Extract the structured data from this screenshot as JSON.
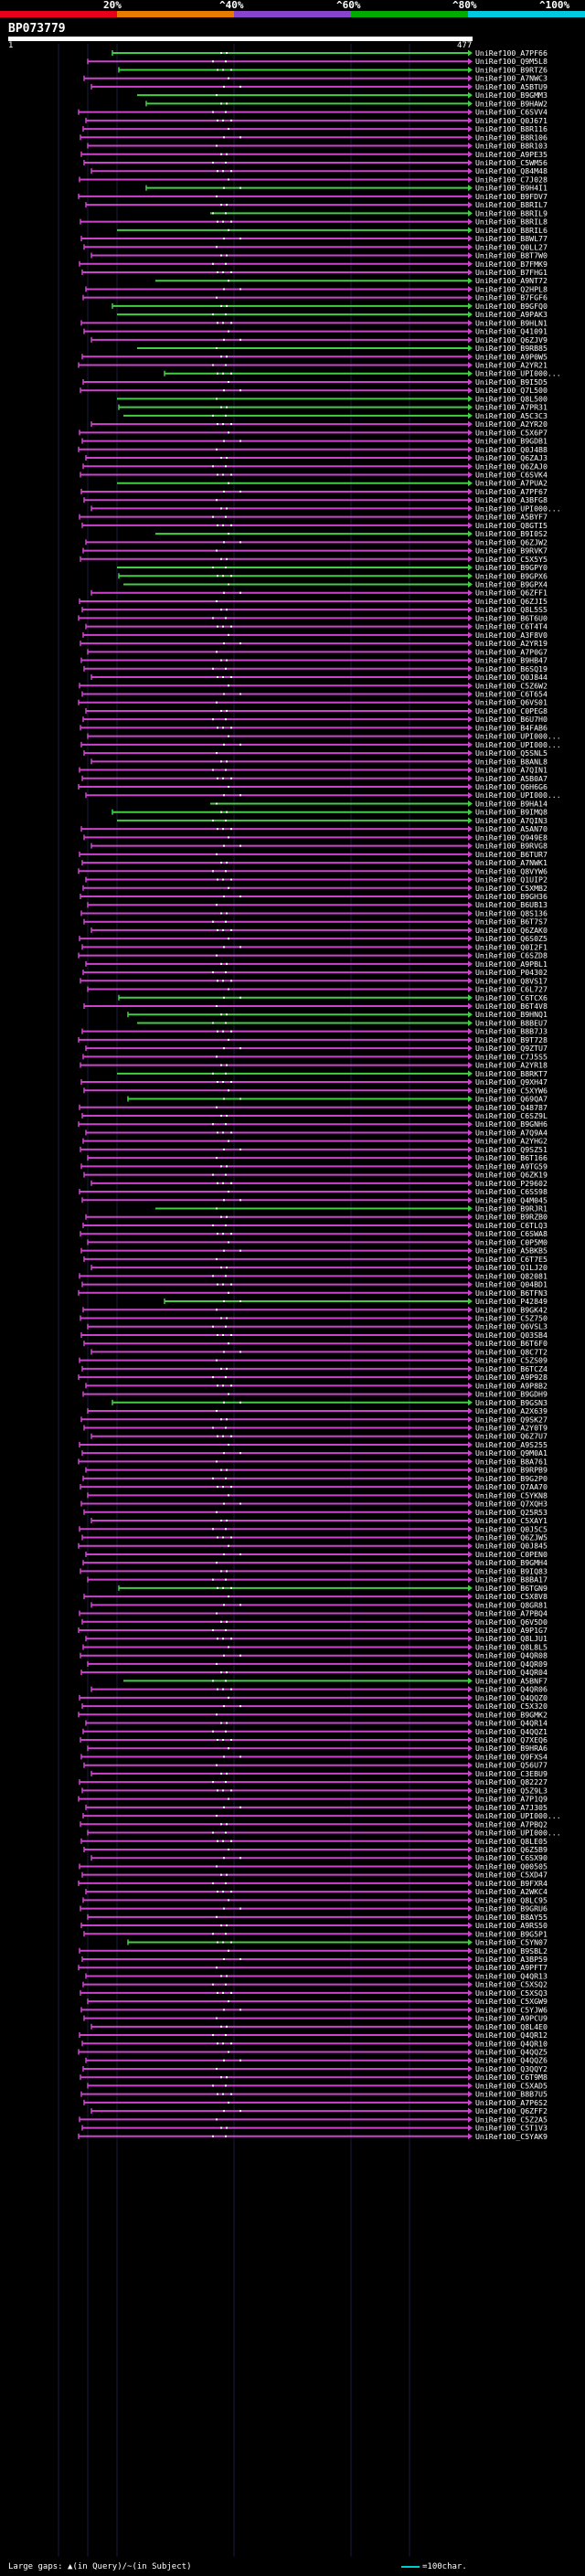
{
  "header": {
    "percent_labels": [
      "20%",
      "^40%",
      "^60%",
      "^80%",
      "^100%"
    ],
    "scale_colors": [
      "#e8001c",
      "#e87a00",
      "#8844cc",
      "#00aa00",
      "#00c8e0"
    ],
    "query_name": "BP073779",
    "coord_start": "1",
    "coord_end": "477"
  },
  "colors": {
    "background": "#000000",
    "identity_low": "#cc44cc",
    "identity_high": "#44cc44",
    "query_bar": "#ffffff",
    "vertical_guide": "#1a1a40",
    "legend_line": "#00cccc"
  },
  "hits": [
    {
      "name": "UniRef100_A7PF66",
      "color": "green"
    },
    {
      "name": "UniRef100_Q9M5L8",
      "color": "pink"
    },
    {
      "name": "UniRef100_B9RTZ6",
      "color": "green"
    },
    {
      "name": "UniRef100_A7NWC3",
      "color": "pink"
    },
    {
      "name": "UniRef100_A5BTU9",
      "color": "pink"
    },
    {
      "name": "UniRef100_B9GMM3",
      "color": "green"
    },
    {
      "name": "UniRef100_B9HAW2",
      "color": "green"
    },
    {
      "name": "UniRef100_C6SVV4",
      "color": "pink"
    },
    {
      "name": "UniRef100_Q0J671",
      "color": "pink"
    },
    {
      "name": "UniRef100_B8R116",
      "color": "pink"
    },
    {
      "name": "UniRef100_B8R106",
      "color": "pink"
    },
    {
      "name": "UniRef100_B8R103",
      "color": "pink"
    },
    {
      "name": "UniRef100_A9PE35",
      "color": "pink"
    },
    {
      "name": "UniRef100_C5WM56",
      "color": "pink"
    },
    {
      "name": "UniRef100_Q84M48",
      "color": "pink"
    },
    {
      "name": "UniRef100_C7J028",
      "color": "pink"
    },
    {
      "name": "UniRef100_B9H4I1",
      "color": "green"
    },
    {
      "name": "UniRef100_B9FDV7",
      "color": "pink"
    },
    {
      "name": "UniRef100_B8RIL7",
      "color": "pink"
    },
    {
      "name": "UniRef100_B8RIL9",
      "color": "green"
    },
    {
      "name": "UniRef100_B8RIL8",
      "color": "pink"
    },
    {
      "name": "UniRef100_B8RIL6",
      "color": "green"
    },
    {
      "name": "UniRef100_B8WL77",
      "color": "pink"
    },
    {
      "name": "UniRef100_Q0LL27",
      "color": "pink"
    },
    {
      "name": "UniRef100_B8T7W0",
      "color": "pink"
    },
    {
      "name": "UniRef100_B7FMK9",
      "color": "pink"
    },
    {
      "name": "UniRef100_B7FHG1",
      "color": "pink"
    },
    {
      "name": "UniRef100_A9NT72",
      "color": "green"
    },
    {
      "name": "UniRef100_Q2HPL8",
      "color": "pink"
    },
    {
      "name": "UniRef100_B7FGF6",
      "color": "pink"
    },
    {
      "name": "UniRef100_B9GFQ0",
      "color": "green"
    },
    {
      "name": "UniRef100_A9PAK3",
      "color": "green"
    },
    {
      "name": "UniRef100_B9HLN1",
      "color": "pink"
    },
    {
      "name": "UniRef100_Q41091",
      "color": "pink"
    },
    {
      "name": "UniRef100_Q6ZJV9",
      "color": "pink"
    },
    {
      "name": "UniRef100_B9RB85",
      "color": "green"
    },
    {
      "name": "UniRef100_A9P0W5",
      "color": "pink"
    },
    {
      "name": "UniRef100_A2YR21",
      "color": "pink"
    },
    {
      "name": "UniRef100_UPI000...",
      "color": "green"
    },
    {
      "name": "UniRef100_B9I5D5",
      "color": "pink"
    },
    {
      "name": "UniRef100_Q7L500",
      "color": "pink"
    },
    {
      "name": "UniRef100_Q8L500",
      "color": "green"
    },
    {
      "name": "UniRef100_A7PR31",
      "color": "green"
    },
    {
      "name": "UniRef100_A5C3C3",
      "color": "green"
    },
    {
      "name": "UniRef100_A2YR20",
      "color": "pink"
    },
    {
      "name": "UniRef100_C5X6P7",
      "color": "pink"
    },
    {
      "name": "UniRef100_B9GDB1",
      "color": "pink"
    },
    {
      "name": "UniRef100_Q0J4B8",
      "color": "pink"
    },
    {
      "name": "UniRef100_Q6ZAJ3",
      "color": "pink"
    },
    {
      "name": "UniRef100_Q6ZAJ0",
      "color": "pink"
    },
    {
      "name": "UniRef100_C6SVK4",
      "color": "pink"
    },
    {
      "name": "UniRef100_A7PUA2",
      "color": "green"
    },
    {
      "name": "UniRef100_A7PF67",
      "color": "pink"
    },
    {
      "name": "UniRef100_A3BFG8",
      "color": "pink"
    },
    {
      "name": "UniRef100_UPI000...",
      "color": "pink"
    },
    {
      "name": "UniRef100_A5BYF7",
      "color": "pink"
    },
    {
      "name": "UniRef100_Q8GTI5",
      "color": "pink"
    },
    {
      "name": "UniRef100_B9I0S2",
      "color": "green"
    },
    {
      "name": "UniRef100_Q6ZJW2",
      "color": "pink"
    },
    {
      "name": "UniRef100_B9RVK7",
      "color": "pink"
    },
    {
      "name": "UniRef100_C5X5Y5",
      "color": "pink"
    },
    {
      "name": "UniRef100_B9GPY0",
      "color": "green"
    },
    {
      "name": "UniRef100_B9GPX6",
      "color": "green"
    },
    {
      "name": "UniRef100_B9GPX4",
      "color": "green"
    },
    {
      "name": "UniRef100_Q6ZFF1",
      "color": "pink"
    },
    {
      "name": "UniRef100_Q6ZJI5",
      "color": "pink"
    },
    {
      "name": "UniRef100_Q8L5S5",
      "color": "pink"
    },
    {
      "name": "UniRef100_B6T6U0",
      "color": "pink"
    },
    {
      "name": "UniRef100_C6T4T4",
      "color": "pink"
    },
    {
      "name": "UniRef100_A3F8V0",
      "color": "pink"
    },
    {
      "name": "UniRef100_A2YR19",
      "color": "pink"
    },
    {
      "name": "UniRef100_A7P0G7",
      "color": "pink"
    },
    {
      "name": "UniRef100_B9HB47",
      "color": "pink"
    },
    {
      "name": "UniRef100_B6SQ19",
      "color": "pink"
    },
    {
      "name": "UniRef100_Q0J844",
      "color": "pink"
    },
    {
      "name": "UniRef100_C5Z6W2",
      "color": "pink"
    },
    {
      "name": "UniRef100_C6T654",
      "color": "pink"
    },
    {
      "name": "UniRef100_Q6VS01",
      "color": "pink"
    },
    {
      "name": "UniRef100_C0PEG8",
      "color": "pink"
    },
    {
      "name": "UniRef100_B6U7H0",
      "color": "pink"
    },
    {
      "name": "UniRef100_B4FAB6",
      "color": "pink"
    },
    {
      "name": "UniRef100_UPI000...",
      "color": "pink"
    },
    {
      "name": "UniRef100_UPI000...",
      "color": "pink"
    },
    {
      "name": "UniRef100_Q5SNL5",
      "color": "pink"
    },
    {
      "name": "UniRef100_B8ANL8",
      "color": "pink"
    },
    {
      "name": "UniRef100_A7QIN1",
      "color": "pink"
    },
    {
      "name": "UniRef100_A5B0A7",
      "color": "pink"
    },
    {
      "name": "UniRef100_Q6H6G6",
      "color": "pink"
    },
    {
      "name": "UniRef100_UPI000...",
      "color": "pink"
    },
    {
      "name": "UniRef100_B9HA14",
      "color": "green"
    },
    {
      "name": "UniRef100_B9IMQ8",
      "color": "green"
    },
    {
      "name": "UniRef100_A7QIN3",
      "color": "green"
    },
    {
      "name": "UniRef100_A5AN70",
      "color": "pink"
    },
    {
      "name": "UniRef100_Q949E8",
      "color": "pink"
    },
    {
      "name": "UniRef100_B9RVG8",
      "color": "pink"
    },
    {
      "name": "UniRef100_B6TUR7",
      "color": "pink"
    },
    {
      "name": "UniRef100_A7NWK1",
      "color": "pink"
    },
    {
      "name": "UniRef100_Q8VYW6",
      "color": "pink"
    },
    {
      "name": "UniRef100_Q1UIP2",
      "color": "pink"
    },
    {
      "name": "UniRef100_C5XMB2",
      "color": "pink"
    },
    {
      "name": "UniRef100_B9GH36",
      "color": "pink"
    },
    {
      "name": "UniRef100_B6UB13",
      "color": "pink"
    },
    {
      "name": "UniRef100_Q8S136",
      "color": "pink"
    },
    {
      "name": "UniRef100_B6T7S7",
      "color": "pink"
    },
    {
      "name": "UniRef100_Q6ZAK0",
      "color": "pink"
    },
    {
      "name": "UniRef100_Q6S0Z5",
      "color": "pink"
    },
    {
      "name": "UniRef100_Q0I2F1",
      "color": "pink"
    },
    {
      "name": "UniRef100_C6SZD8",
      "color": "pink"
    },
    {
      "name": "UniRef100_A9PBL1",
      "color": "pink"
    },
    {
      "name": "UniRef100_P04302",
      "color": "pink"
    },
    {
      "name": "UniRef100_Q8VS17",
      "color": "pink"
    },
    {
      "name": "UniRef100_C6L727",
      "color": "pink"
    },
    {
      "name": "UniRef100_C6TCX6",
      "color": "green"
    },
    {
      "name": "UniRef100_B6T4V8",
      "color": "pink"
    },
    {
      "name": "UniRef100_B9HNQ1",
      "color": "green"
    },
    {
      "name": "UniRef100_B8BEU7",
      "color": "green"
    },
    {
      "name": "UniRef100_B8B7J3",
      "color": "pink"
    },
    {
      "name": "UniRef100_B9T728",
      "color": "pink"
    },
    {
      "name": "UniRef100_Q9ZTU7",
      "color": "pink"
    },
    {
      "name": "UniRef100_C7J5S5",
      "color": "pink"
    },
    {
      "name": "UniRef100_A2YR18",
      "color": "pink"
    },
    {
      "name": "UniRef100_B8RKT7",
      "color": "green"
    },
    {
      "name": "UniRef100_Q9XH47",
      "color": "pink"
    },
    {
      "name": "UniRef100_C5XYW6",
      "color": "pink"
    },
    {
      "name": "UniRef100_Q69QA7",
      "color": "green"
    },
    {
      "name": "UniRef100_Q48787",
      "color": "pink"
    },
    {
      "name": "UniRef100_C6SZ9L",
      "color": "pink"
    },
    {
      "name": "UniRef100_B9GNH6",
      "color": "pink"
    },
    {
      "name": "UniRef100_A7Q9A4",
      "color": "pink"
    },
    {
      "name": "UniRef100_A2YHG2",
      "color": "pink"
    },
    {
      "name": "UniRef100_Q9SZ51",
      "color": "pink"
    },
    {
      "name": "UniRef100_B6T166",
      "color": "pink"
    },
    {
      "name": "UniRef100_A9TG59",
      "color": "pink"
    },
    {
      "name": "UniRef100_Q6ZK19",
      "color": "pink"
    },
    {
      "name": "UniRef100_P29602",
      "color": "pink"
    },
    {
      "name": "UniRef100_C6SS98",
      "color": "pink"
    },
    {
      "name": "UniRef100_Q4M045",
      "color": "pink"
    },
    {
      "name": "UniRef100_B9RJR1",
      "color": "green"
    },
    {
      "name": "UniRef100_B9RZB0",
      "color": "pink"
    },
    {
      "name": "UniRef100_C6TLQ3",
      "color": "pink"
    },
    {
      "name": "UniRef100_C6SWA8",
      "color": "pink"
    },
    {
      "name": "UniRef100_C0P5M0",
      "color": "pink"
    },
    {
      "name": "UniRef100_A5BKB5",
      "color": "pink"
    },
    {
      "name": "UniRef100_C6T7E5",
      "color": "pink"
    },
    {
      "name": "UniRef100_Q1LJ20",
      "color": "pink"
    },
    {
      "name": "UniRef100_Q82081",
      "color": "pink"
    },
    {
      "name": "UniRef100_Q04BD1",
      "color": "pink"
    },
    {
      "name": "UniRef100_B6TFN3",
      "color": "pink"
    },
    {
      "name": "UniRef100_P42849",
      "color": "green"
    },
    {
      "name": "UniRef100_B9GK42",
      "color": "pink"
    },
    {
      "name": "UniRef100_C5Z750",
      "color": "pink"
    },
    {
      "name": "UniRef100_Q6VSL3",
      "color": "pink"
    },
    {
      "name": "UniRef100_Q03SB4",
      "color": "pink"
    },
    {
      "name": "UniRef100_B6T6F0",
      "color": "pink"
    },
    {
      "name": "UniRef100_Q8C7T2",
      "color": "pink"
    },
    {
      "name": "UniRef100_C5ZS09",
      "color": "pink"
    },
    {
      "name": "UniRef100_B6TCZ4",
      "color": "pink"
    },
    {
      "name": "UniRef100_A9P928",
      "color": "pink"
    },
    {
      "name": "UniRef100_A9P8B2",
      "color": "pink"
    },
    {
      "name": "UniRef100_B9GDH9",
      "color": "pink"
    },
    {
      "name": "UniRef100_B9GSN3",
      "color": "green"
    },
    {
      "name": "UniRef100_A2X639",
      "color": "pink"
    },
    {
      "name": "UniRef100_Q9SK27",
      "color": "pink"
    },
    {
      "name": "UniRef100_A2Y0T9",
      "color": "pink"
    },
    {
      "name": "UniRef100_Q6Z7U7",
      "color": "pink"
    },
    {
      "name": "UniRef100_A9S255",
      "color": "pink"
    },
    {
      "name": "UniRef100_Q9M0A1",
      "color": "pink"
    },
    {
      "name": "UniRef100_B8A761",
      "color": "pink"
    },
    {
      "name": "UniRef100_B9RPB9",
      "color": "pink"
    },
    {
      "name": "UniRef100_B9G2P0",
      "color": "pink"
    },
    {
      "name": "UniRef100_Q7AA70",
      "color": "pink"
    },
    {
      "name": "UniRef100_C5YKN8",
      "color": "pink"
    },
    {
      "name": "UniRef100_Q7XQH3",
      "color": "pink"
    },
    {
      "name": "UniRef100_Q25R53",
      "color": "pink"
    },
    {
      "name": "UniRef100_C5XAY1",
      "color": "pink"
    },
    {
      "name": "UniRef100_Q0J5C5",
      "color": "pink"
    },
    {
      "name": "UniRef100_Q6ZJW5",
      "color": "pink"
    },
    {
      "name": "UniRef100_Q0J845",
      "color": "pink"
    },
    {
      "name": "UniRef100_C0PEN0",
      "color": "pink"
    },
    {
      "name": "UniRef100_B9GMH4",
      "color": "pink"
    },
    {
      "name": "UniRef100_B9IQ83",
      "color": "pink"
    },
    {
      "name": "UniRef100_B8BA17",
      "color": "pink"
    },
    {
      "name": "UniRef100_B6TGN9",
      "color": "green"
    },
    {
      "name": "UniRef100_C5X8V8",
      "color": "pink"
    },
    {
      "name": "UniRef100_Q8GR81",
      "color": "pink"
    },
    {
      "name": "UniRef100_A7PBQ4",
      "color": "pink"
    },
    {
      "name": "UniRef100_Q6V5D0",
      "color": "pink"
    },
    {
      "name": "UniRef100_A9P1G7",
      "color": "pink"
    },
    {
      "name": "UniRef100_Q8LJU1",
      "color": "pink"
    },
    {
      "name": "UniRef100_Q8L8L5",
      "color": "pink"
    },
    {
      "name": "UniRef100_Q4QR08",
      "color": "pink"
    },
    {
      "name": "UniRef100_Q4QR09",
      "color": "pink"
    },
    {
      "name": "UniRef100_Q4QR04",
      "color": "pink"
    },
    {
      "name": "UniRef100_A5BNF7",
      "color": "green"
    },
    {
      "name": "UniRef100_Q4QR06",
      "color": "pink"
    },
    {
      "name": "UniRef100_Q4QQZ0",
      "color": "pink"
    },
    {
      "name": "UniRef100_C5X320",
      "color": "pink"
    },
    {
      "name": "UniRef100_B9GMK2",
      "color": "pink"
    },
    {
      "name": "UniRef100_Q4QR14",
      "color": "pink"
    },
    {
      "name": "UniRef100_Q4QQZ1",
      "color": "pink"
    },
    {
      "name": "UniRef100_Q7XEQ6",
      "color": "pink"
    },
    {
      "name": "UniRef100_B9HRA6",
      "color": "pink"
    },
    {
      "name": "UniRef100_Q9FXS4",
      "color": "pink"
    },
    {
      "name": "UniRef100_Q56U77",
      "color": "pink"
    },
    {
      "name": "UniRef100_C3EBU9",
      "color": "pink"
    },
    {
      "name": "UniRef100_Q82227",
      "color": "pink"
    },
    {
      "name": "UniRef100_Q5Z9L3",
      "color": "pink"
    },
    {
      "name": "UniRef100_A7P1Q9",
      "color": "pink"
    },
    {
      "name": "UniRef100_A7J305",
      "color": "pink"
    },
    {
      "name": "UniRef100_UPI000...",
      "color": "pink"
    },
    {
      "name": "UniRef100_A7PBQ2",
      "color": "pink"
    },
    {
      "name": "UniRef100_UPI000...",
      "color": "pink"
    },
    {
      "name": "UniRef100_Q8LE05",
      "color": "pink"
    },
    {
      "name": "UniRef100_Q6Z5B9",
      "color": "pink"
    },
    {
      "name": "UniRef100_C6SX90",
      "color": "pink"
    },
    {
      "name": "UniRef100_Q00505",
      "color": "pink"
    },
    {
      "name": "UniRef100_C5XD47",
      "color": "pink"
    },
    {
      "name": "UniRef100_B9FXR4",
      "color": "pink"
    },
    {
      "name": "UniRef100_A2WKC4",
      "color": "pink"
    },
    {
      "name": "UniRef100_Q8LC95",
      "color": "pink"
    },
    {
      "name": "UniRef100_B9GRU6",
      "color": "pink"
    },
    {
      "name": "UniRef100_B8AY55",
      "color": "pink"
    },
    {
      "name": "UniRef100_A9RS50",
      "color": "pink"
    },
    {
      "name": "UniRef100_B9G5P1",
      "color": "pink"
    },
    {
      "name": "UniRef100_C5YN07",
      "color": "green"
    },
    {
      "name": "UniRef100_B9SBL2",
      "color": "pink"
    },
    {
      "name": "UniRef100_A3BP59",
      "color": "pink"
    },
    {
      "name": "UniRef100_A9PFT7",
      "color": "pink"
    },
    {
      "name": "UniRef100_Q4QR13",
      "color": "pink"
    },
    {
      "name": "UniRef100_C5XSQ2",
      "color": "pink"
    },
    {
      "name": "UniRef100_C5XSQ3",
      "color": "pink"
    },
    {
      "name": "UniRef100_C5XGW9",
      "color": "pink"
    },
    {
      "name": "UniRef100_C5YJW6",
      "color": "pink"
    },
    {
      "name": "UniRef100_A9PCU9",
      "color": "pink"
    },
    {
      "name": "UniRef100_Q8L4E0",
      "color": "pink"
    },
    {
      "name": "UniRef100_Q4QR12",
      "color": "pink"
    },
    {
      "name": "UniRef100_Q4QR10",
      "color": "pink"
    },
    {
      "name": "UniRef100_Q4QQZ5",
      "color": "pink"
    },
    {
      "name": "UniRef100_Q4QQZ6",
      "color": "pink"
    },
    {
      "name": "UniRef100_Q3QQY2",
      "color": "pink"
    },
    {
      "name": "UniRef100_C6T9M8",
      "color": "pink"
    },
    {
      "name": "UniRef100_C5XAD5",
      "color": "pink"
    },
    {
      "name": "UniRef100_B8B7U5",
      "color": "pink"
    },
    {
      "name": "UniRef100_A7P6S2",
      "color": "pink"
    },
    {
      "name": "UniRef100_Q6ZFF2",
      "color": "pink"
    },
    {
      "name": "UniRef100_C5Z2A5",
      "color": "pink"
    },
    {
      "name": "UniRef100_C5T1V3",
      "color": "pink"
    },
    {
      "name": "UniRef100_C5YAK9",
      "color": "pink"
    }
  ],
  "footer": {
    "gaps_text": "Large gaps: ▲(in Query)/~(in Subject)",
    "legend_text": "=100char."
  }
}
